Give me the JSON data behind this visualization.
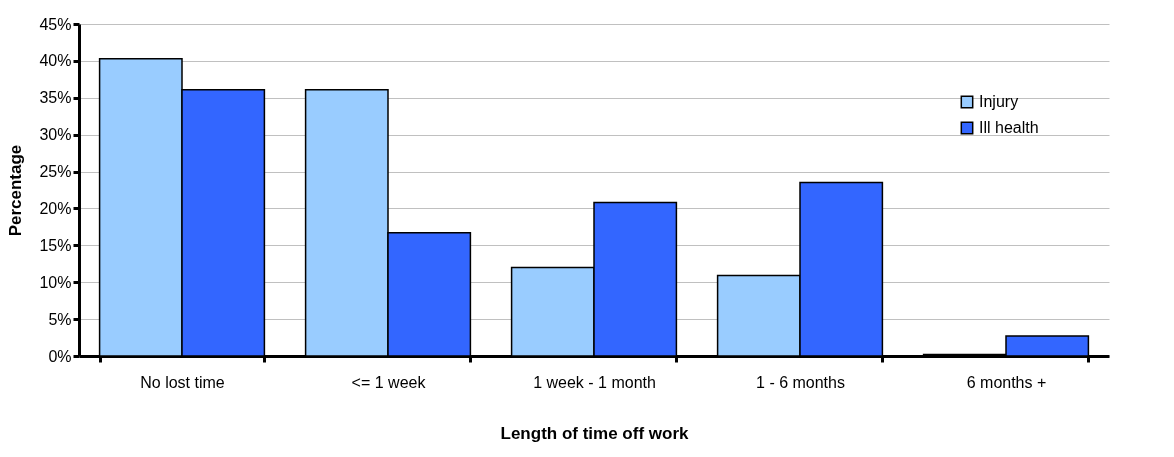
{
  "chart_data": {
    "type": "bar",
    "xlabel": "Length of time off work",
    "ylabel": "Percentage",
    "categories": [
      "No lost time",
      "<= 1 week",
      "1 week - 1 month",
      "1 - 6 months",
      "6 months +"
    ],
    "series": [
      {
        "name": "Injury",
        "color": "#99ccff",
        "values": [
          40.3,
          36.1,
          12.0,
          10.9,
          0.2
        ]
      },
      {
        "name": "Ill health",
        "color": "#3366ff",
        "values": [
          36.1,
          16.7,
          20.8,
          23.5,
          2.7
        ]
      }
    ],
    "ylim": [
      0,
      45
    ],
    "yticks": [
      {
        "value": 0,
        "label": "0%"
      },
      {
        "value": 5,
        "label": "5%"
      },
      {
        "value": 10,
        "label": "10%"
      },
      {
        "value": 15,
        "label": "15%"
      },
      {
        "value": 20,
        "label": "20%"
      },
      {
        "value": 25,
        "label": "25%"
      },
      {
        "value": 30,
        "label": "30%"
      },
      {
        "value": 35,
        "label": "35%"
      },
      {
        "value": 40,
        "label": "40%"
      },
      {
        "value": 45,
        "label": "45%"
      }
    ],
    "grid": "y",
    "legend": "top right"
  }
}
